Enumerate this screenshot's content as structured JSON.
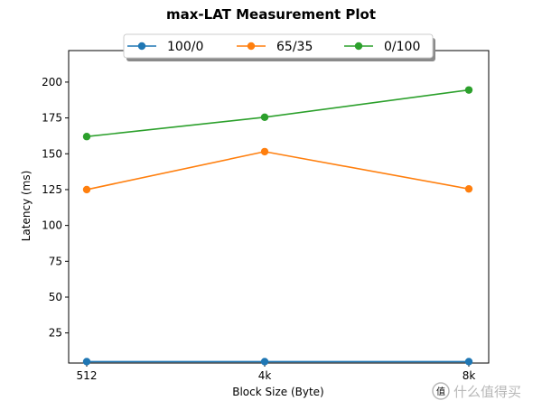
{
  "chart_data": {
    "type": "line",
    "title": "max-LAT Measurement Plot",
    "xlabel": "Block Size (Byte)",
    "ylabel": "Latency (ms)",
    "categories": [
      "512",
      "4k",
      "8k"
    ],
    "ylim": [
      4,
      222
    ],
    "yticks": [
      25,
      50,
      75,
      100,
      125,
      150,
      175,
      200
    ],
    "grid": false,
    "legend_position": "top-center",
    "series": [
      {
        "name": "100/0",
        "color": "#1f77b4",
        "values": [
          5,
          5,
          5
        ]
      },
      {
        "name": "65/35",
        "color": "#ff7f0e",
        "values": [
          125,
          151.5,
          125.5
        ]
      },
      {
        "name": "0/100",
        "color": "#2ca02c",
        "values": [
          162,
          175.5,
          194.5
        ]
      }
    ]
  },
  "watermark": {
    "text": "什么值得买",
    "icon": "zhi-badge-icon"
  }
}
